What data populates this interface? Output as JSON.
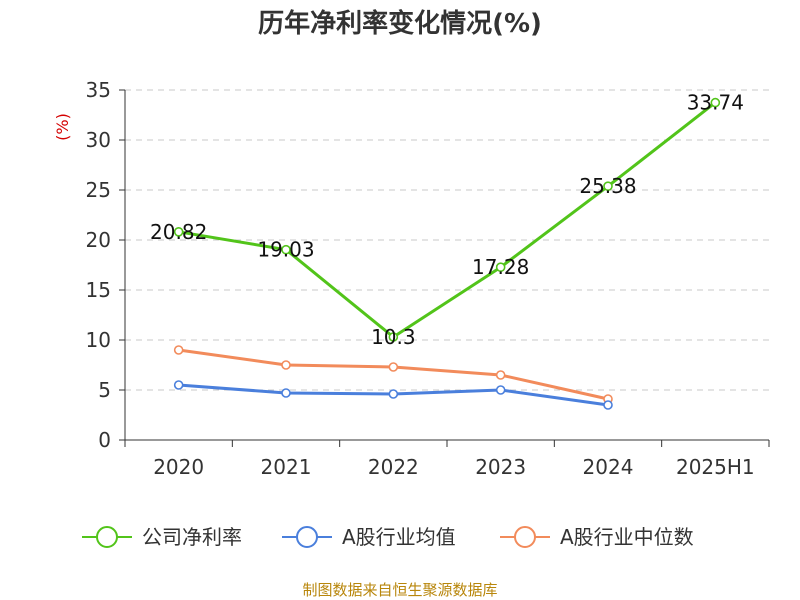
{
  "chart_data": {
    "type": "line",
    "title": "历年净利率变化情况(%)",
    "ylabel": "(%)",
    "xlabel": "",
    "categories": [
      "2020",
      "2021",
      "2022",
      "2023",
      "2024",
      "2025H1"
    ],
    "ylim": [
      0,
      35
    ],
    "yticks": [
      0,
      5,
      10,
      15,
      20,
      25,
      30,
      35
    ],
    "grid": true,
    "legend_position": "bottom",
    "series": [
      {
        "name": "公司净利率",
        "color": "#52c41a",
        "values": [
          20.82,
          19.03,
          10.3,
          17.28,
          25.38,
          33.74
        ],
        "labels": [
          "20.82",
          "19.03",
          "10.3",
          "17.28",
          "25.38",
          "33.74"
        ]
      },
      {
        "name": "A股行业均值",
        "color": "#4a7fdc",
        "values": [
          5.5,
          4.7,
          4.6,
          5.0,
          3.5,
          null
        ]
      },
      {
        "name": "A股行业中位数",
        "color": "#f28b5b",
        "values": [
          9.0,
          7.5,
          7.3,
          6.5,
          4.1,
          null
        ]
      }
    ]
  },
  "source": "制图数据来自恒生聚源数据库"
}
